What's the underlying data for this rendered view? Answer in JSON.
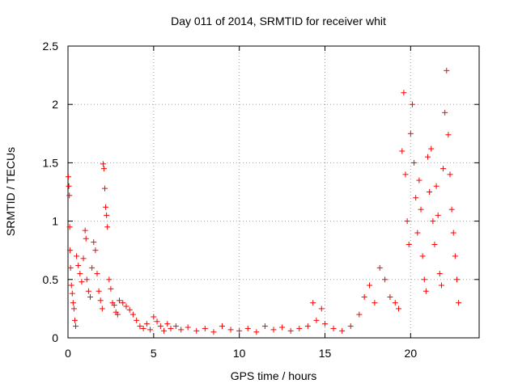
{
  "chart_data": {
    "type": "scatter",
    "title": "Day 011 of 2014, SRMTID for receiver whit",
    "xlabel": "GPS time / hours",
    "ylabel": "SRMTID / TECUs",
    "xlim": [
      0,
      24
    ],
    "ylim": [
      0,
      2.5
    ],
    "x_ticks": [
      0,
      5,
      10,
      15,
      20
    ],
    "y_ticks": [
      0,
      0.5,
      1,
      1.5,
      2,
      2.5
    ],
    "x_tick_labels": [
      "0",
      "5",
      "10",
      "15",
      "20"
    ],
    "y_tick_labels": [
      "0",
      "0.5",
      "1",
      "1.5",
      "2",
      "2.5"
    ],
    "grid": true,
    "marker": "+",
    "color": "#ff0000",
    "series": [
      {
        "name": "SRMTID",
        "points": [
          [
            0.02,
            1.38
          ],
          [
            0.05,
            1.3
          ],
          [
            0.08,
            1.22
          ],
          [
            0.1,
            0.95
          ],
          [
            0.12,
            0.75
          ],
          [
            0.15,
            0.6
          ],
          [
            0.2,
            0.45
          ],
          [
            0.25,
            0.38
          ],
          [
            0.3,
            0.3
          ],
          [
            0.35,
            0.25
          ],
          [
            0.4,
            0.15
          ],
          [
            0.45,
            0.1
          ],
          [
            0.5,
            0.7
          ],
          [
            0.6,
            0.62
          ],
          [
            0.7,
            0.55
          ],
          [
            0.8,
            0.48
          ],
          [
            0.9,
            0.68
          ],
          [
            1.0,
            0.92
          ],
          [
            1.05,
            0.85
          ],
          [
            1.1,
            0.5
          ],
          [
            1.2,
            0.4
          ],
          [
            1.3,
            0.35
          ],
          [
            1.4,
            0.6
          ],
          [
            1.5,
            0.82
          ],
          [
            1.6,
            0.75
          ],
          [
            1.7,
            0.55
          ],
          [
            1.8,
            0.4
          ],
          [
            1.9,
            0.32
          ],
          [
            2.0,
            0.25
          ],
          [
            2.05,
            1.49
          ],
          [
            2.1,
            1.45
          ],
          [
            2.15,
            1.28
          ],
          [
            2.2,
            1.12
          ],
          [
            2.25,
            1.05
          ],
          [
            2.3,
            0.95
          ],
          [
            2.4,
            0.5
          ],
          [
            2.5,
            0.42
          ],
          [
            2.6,
            0.3
          ],
          [
            2.7,
            0.28
          ],
          [
            2.8,
            0.22
          ],
          [
            2.9,
            0.2
          ],
          [
            3.0,
            0.32
          ],
          [
            3.2,
            0.3
          ],
          [
            3.4,
            0.27
          ],
          [
            3.6,
            0.24
          ],
          [
            3.8,
            0.2
          ],
          [
            4.0,
            0.15
          ],
          [
            4.2,
            0.1
          ],
          [
            4.4,
            0.08
          ],
          [
            4.6,
            0.12
          ],
          [
            4.8,
            0.07
          ],
          [
            5.0,
            0.18
          ],
          [
            5.2,
            0.14
          ],
          [
            5.4,
            0.1
          ],
          [
            5.6,
            0.06
          ],
          [
            5.8,
            0.12
          ],
          [
            6.0,
            0.08
          ],
          [
            6.3,
            0.1
          ],
          [
            6.6,
            0.07
          ],
          [
            7.0,
            0.09
          ],
          [
            7.5,
            0.06
          ],
          [
            8.0,
            0.08
          ],
          [
            8.5,
            0.05
          ],
          [
            9.0,
            0.1
          ],
          [
            9.5,
            0.07
          ],
          [
            10.0,
            0.06
          ],
          [
            10.5,
            0.08
          ],
          [
            11.0,
            0.05
          ],
          [
            11.5,
            0.1
          ],
          [
            12.0,
            0.07
          ],
          [
            12.5,
            0.09
          ],
          [
            13.0,
            0.06
          ],
          [
            13.5,
            0.08
          ],
          [
            14.0,
            0.1
          ],
          [
            14.3,
            0.3
          ],
          [
            14.5,
            0.15
          ],
          [
            14.8,
            0.25
          ],
          [
            15.0,
            0.12
          ],
          [
            15.5,
            0.08
          ],
          [
            16.0,
            0.06
          ],
          [
            16.5,
            0.1
          ],
          [
            17.0,
            0.2
          ],
          [
            17.3,
            0.35
          ],
          [
            17.6,
            0.45
          ],
          [
            17.9,
            0.3
          ],
          [
            18.2,
            0.6
          ],
          [
            18.5,
            0.5
          ],
          [
            18.8,
            0.35
          ],
          [
            19.1,
            0.3
          ],
          [
            19.3,
            0.25
          ],
          [
            19.5,
            1.6
          ],
          [
            19.6,
            2.1
          ],
          [
            19.7,
            1.4
          ],
          [
            19.8,
            1.0
          ],
          [
            19.9,
            0.8
          ],
          [
            20.0,
            1.75
          ],
          [
            20.1,
            2.0
          ],
          [
            20.2,
            1.5
          ],
          [
            20.3,
            1.2
          ],
          [
            20.4,
            0.9
          ],
          [
            20.5,
            1.35
          ],
          [
            20.6,
            1.1
          ],
          [
            20.7,
            0.7
          ],
          [
            20.8,
            0.5
          ],
          [
            20.9,
            0.4
          ],
          [
            21.0,
            1.55
          ],
          [
            21.1,
            1.25
          ],
          [
            21.2,
            1.62
          ],
          [
            21.3,
            1.0
          ],
          [
            21.4,
            0.8
          ],
          [
            21.5,
            1.3
          ],
          [
            21.6,
            1.05
          ],
          [
            21.7,
            0.55
          ],
          [
            21.8,
            0.45
          ],
          [
            21.9,
            1.45
          ],
          [
            22.0,
            1.93
          ],
          [
            22.1,
            2.29
          ],
          [
            22.2,
            1.74
          ],
          [
            22.3,
            1.4
          ],
          [
            22.4,
            1.1
          ],
          [
            22.5,
            0.9
          ],
          [
            22.6,
            0.7
          ],
          [
            22.7,
            0.5
          ],
          [
            22.8,
            0.3
          ]
        ]
      }
    ]
  }
}
